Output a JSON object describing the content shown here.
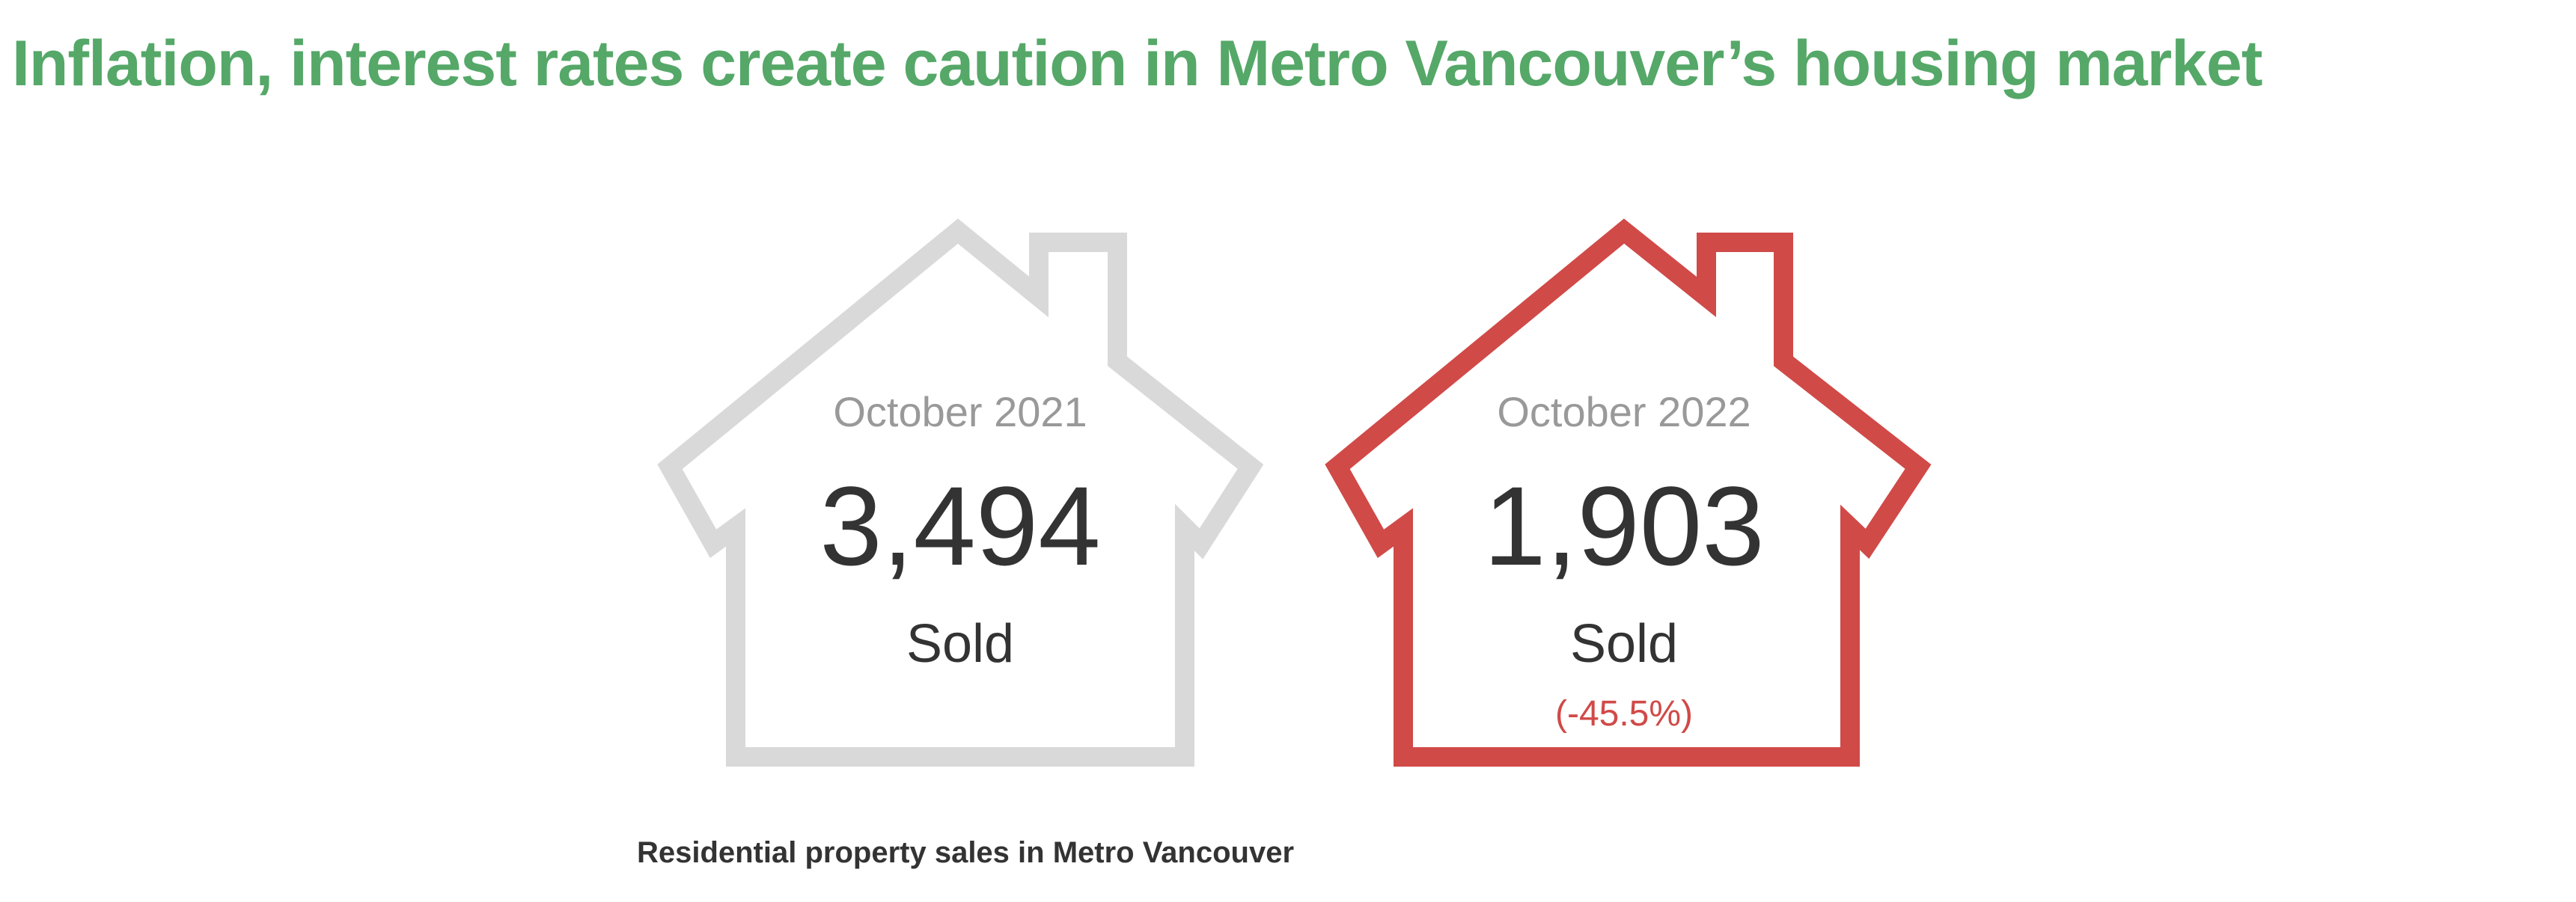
{
  "title": "Inflation, interest rates create caution in Metro Vancouver’s housing market",
  "colors": {
    "title": "#55a868",
    "house_previous": "#d9d9d9",
    "house_current": "#d04a48",
    "change_text": "#d04a48"
  },
  "chart_data": {
    "type": "pictogram",
    "caption": "Residential property sales in Metro Vancouver",
    "series": [
      {
        "period": "October 2021",
        "value": 3494,
        "value_label": "3,494",
        "unit": "Sold",
        "change": ""
      },
      {
        "period": "October 2022",
        "value": 1903,
        "value_label": "1,903",
        "unit": "Sold",
        "change": "(-45.5%)"
      }
    ]
  }
}
